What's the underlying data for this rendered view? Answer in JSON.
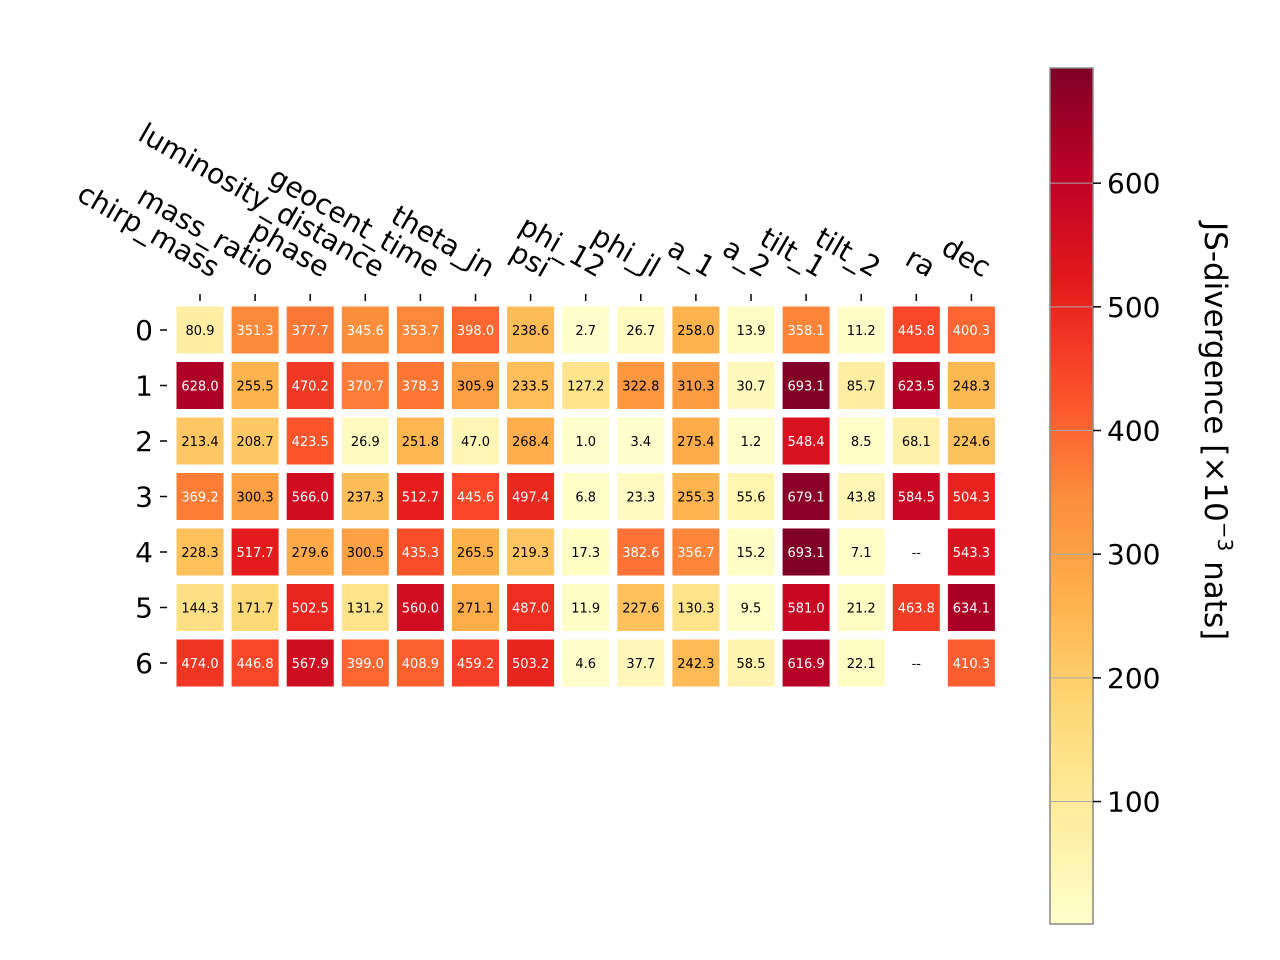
{
  "chart_data": {
    "type": "heatmap",
    "columns": [
      "chirp_mass",
      "mass_ratio",
      "phase",
      "luminosity_distance",
      "geocent_time",
      "theta_jn",
      "psi",
      "phi_12",
      "phi_jl",
      "a_1",
      "a_2",
      "tilt_1",
      "tilt_2",
      "ra",
      "dec"
    ],
    "rows": [
      "0",
      "1",
      "2",
      "3",
      "4",
      "5",
      "6"
    ],
    "values": [
      [
        80.9,
        351.3,
        377.7,
        345.6,
        353.7,
        398.0,
        238.6,
        2.7,
        26.7,
        258.0,
        13.9,
        358.1,
        11.2,
        445.8,
        400.3
      ],
      [
        628.0,
        255.5,
        470.2,
        370.7,
        378.3,
        305.9,
        233.5,
        127.2,
        322.8,
        310.3,
        30.7,
        693.1,
        85.7,
        623.5,
        248.3
      ],
      [
        213.4,
        208.7,
        423.5,
        26.9,
        251.8,
        47.0,
        268.4,
        1.0,
        3.4,
        275.4,
        1.2,
        548.4,
        8.5,
        68.1,
        224.6
      ],
      [
        369.2,
        300.3,
        566.0,
        237.3,
        512.7,
        445.6,
        497.4,
        6.8,
        23.3,
        255.3,
        55.6,
        679.1,
        43.8,
        584.5,
        504.3
      ],
      [
        228.3,
        517.7,
        279.6,
        300.5,
        435.3,
        265.5,
        219.3,
        17.3,
        382.6,
        356.7,
        15.2,
        693.1,
        7.1,
        null,
        543.3
      ],
      [
        144.3,
        171.7,
        502.5,
        131.2,
        560.0,
        271.1,
        487.0,
        11.9,
        227.6,
        130.3,
        9.5,
        581.0,
        21.2,
        463.8,
        634.1
      ],
      [
        474.0,
        446.8,
        567.9,
        399.0,
        408.9,
        459.2,
        503.2,
        4.6,
        37.7,
        242.3,
        58.5,
        616.9,
        22.1,
        null,
        410.3
      ]
    ],
    "cell_labels": [
      [
        "80.9",
        "351.3",
        "377.7",
        "345.6",
        "353.7",
        "398.0",
        "238.6",
        "2.7",
        "26.7",
        "258.0",
        "13.9",
        "358.1",
        "11.2",
        "445.8",
        "400.3"
      ],
      [
        "628.0",
        "255.5",
        "470.2",
        "370.7",
        "378.3",
        "305.9",
        "233.5",
        "127.2",
        "322.8",
        "310.3",
        "30.7",
        "693.1",
        "85.7",
        "623.5",
        "248.3"
      ],
      [
        "213.4",
        "208.7",
        "423.5",
        "26.9",
        "251.8",
        "47.0",
        "268.4",
        "1.0",
        "3.4",
        "275.4",
        "1.2",
        "548.4",
        "8.5",
        "68.1",
        "224.6"
      ],
      [
        "369.2",
        "300.3",
        "566.0",
        "237.3",
        "512.7",
        "445.6",
        "497.4",
        "6.8",
        "23.3",
        "255.3",
        "55.6",
        "679.1",
        "43.8",
        "584.5",
        "504.3"
      ],
      [
        "228.3",
        "517.7",
        "279.6",
        "300.5",
        "435.3",
        "265.5",
        "219.3",
        "17.3",
        "382.6",
        "356.7",
        "15.2",
        "693.1",
        "7.1",
        "--",
        "543.3"
      ],
      [
        "144.3",
        "171.7",
        "502.5",
        "131.2",
        "560.0",
        "271.1",
        "487.0",
        "11.9",
        "227.6",
        "130.3",
        "9.5",
        "581.0",
        "21.2",
        "463.8",
        "634.1"
      ],
      [
        "474.0",
        "446.8",
        "567.9",
        "399.0",
        "408.9",
        "459.2",
        "503.2",
        "4.6",
        "37.7",
        "242.3",
        "58.5",
        "616.9",
        "22.1",
        "--",
        "410.3"
      ]
    ],
    "missing_label": "--",
    "colorbar": {
      "label_main": "JS-divergence [×10",
      "label_sup": "−3",
      "label_tail": " nats]",
      "ticks": [
        "100",
        "200",
        "300",
        "400",
        "500",
        "600"
      ],
      "tick_values": [
        100,
        200,
        300,
        400,
        500,
        600
      ],
      "range": [
        1.0,
        693.1
      ],
      "colormap": "YlOrRd",
      "colormap_stops": [
        "#ffffcc",
        "#ffeda0",
        "#fed976",
        "#feb24c",
        "#fd8d3c",
        "#fc4e2a",
        "#e31a1c",
        "#bd0026",
        "#800026"
      ]
    },
    "grid": false,
    "legend": "colorbar-right"
  }
}
